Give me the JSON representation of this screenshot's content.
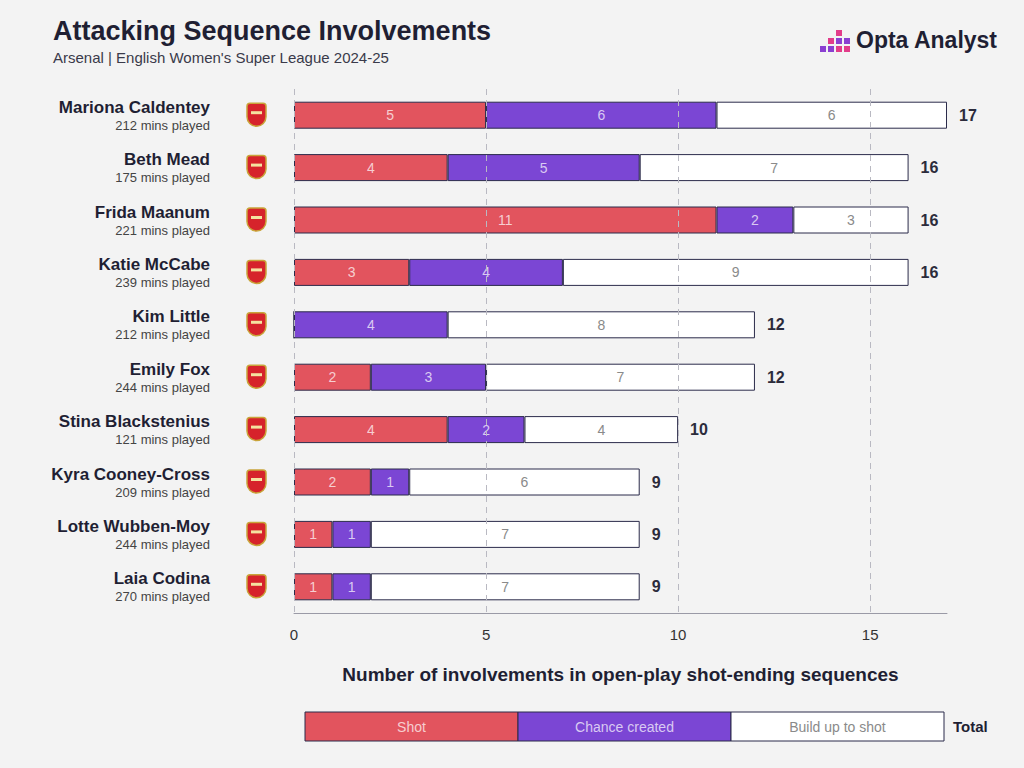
{
  "chart_data": {
    "type": "bar",
    "orientation": "horizontal",
    "stacked": true,
    "data_labels": true,
    "grid": true,
    "legend": "bottom",
    "title": "Attacking Sequence Involvements",
    "subtitle": "Arsenal | English Women's Super League 2024-25",
    "logo_text": "Opta Analyst",
    "categories": [
      "Mariona Caldentey",
      "Beth Mead",
      "Frida Maanum",
      "Katie McCabe",
      "Kim Little",
      "Emily Fox",
      "Stina Blackstenius",
      "Kyra Cooney-Cross",
      "Lotte Wubben-Moy",
      "Laia Codina"
    ],
    "category_subtitles": [
      "212 mins played",
      "175 mins played",
      "221 mins played",
      "239 mins played",
      "212 mins played",
      "244 mins played",
      "121 mins played",
      "209 mins played",
      "244 mins played",
      "270 mins played"
    ],
    "series": [
      {
        "name": "Shot",
        "color": "#e2545e",
        "values": [
          5,
          4,
          11,
          3,
          0,
          2,
          4,
          2,
          1,
          1
        ]
      },
      {
        "name": "Chance created",
        "color": "#7b46d4",
        "values": [
          6,
          5,
          2,
          4,
          4,
          3,
          2,
          1,
          1,
          1
        ]
      },
      {
        "name": "Build up to shot",
        "color": "#ffffff",
        "values": [
          6,
          7,
          3,
          9,
          8,
          7,
          4,
          6,
          7,
          7
        ]
      }
    ],
    "totals": [
      17,
      16,
      16,
      16,
      12,
      12,
      10,
      9,
      9,
      9
    ],
    "totals_label": "Total",
    "xlabel": "Number of involvements in open-play shot-ending sequences",
    "xlim": [
      0,
      17
    ],
    "xticks": [
      0,
      5,
      10,
      15
    ]
  }
}
